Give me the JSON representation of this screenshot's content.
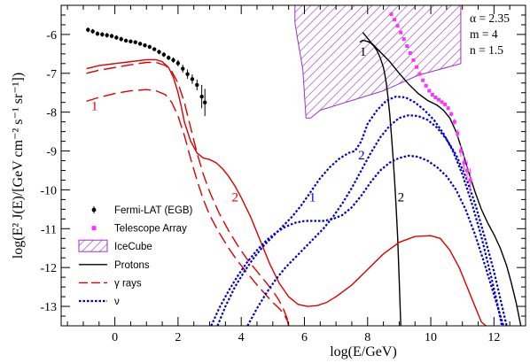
{
  "chart_data": {
    "type": "line",
    "xlabel": "log(E/GeV)",
    "ylabel": "log(E² J(E)/[GeV cm⁻² s⁻¹ sr⁻¹])",
    "xlim": [
      -1.7,
      13.0
    ],
    "ylim": [
      -13.5,
      -5.25
    ],
    "x_ticks": [
      0,
      2,
      4,
      6,
      8,
      10,
      12
    ],
    "y_ticks": [
      -13,
      -12,
      -11,
      -10,
      -9,
      -8,
      -7,
      -6
    ],
    "parameters": [
      "α = 2.35",
      "m = 4",
      "n = 1.5"
    ],
    "legend": {
      "position": "bottom-left",
      "entries": [
        {
          "label": "Fermi-LAT (EGB)",
          "symbol": "dot",
          "color": "#000000"
        },
        {
          "label": "Telescope Array",
          "symbol": "square",
          "color": "#ff33ff"
        },
        {
          "label": "IceCube",
          "symbol": "hatch",
          "color": "#9933cc"
        },
        {
          "label": "Protons",
          "symbol": "solid",
          "color": "#000000"
        },
        {
          "label": "γ rays",
          "symbol": "dashed",
          "color": "#dd0000"
        },
        {
          "label": "ν",
          "symbol": "dotted",
          "color": "#0000cc"
        }
      ]
    },
    "curve_labels": [
      {
        "text": "1",
        "x": -0.75,
        "y": -7.95,
        "color": "#dd0000"
      },
      {
        "text": "2",
        "x": 3.7,
        "y": -10.3,
        "color": "#dd0000"
      },
      {
        "text": "1",
        "x": 6.15,
        "y": -10.3,
        "color": "#0000cc"
      },
      {
        "text": "2",
        "x": 7.7,
        "y": -9.22,
        "color": "#0000cc"
      },
      {
        "text": "1",
        "x": 7.75,
        "y": -6.55,
        "color": "#000000"
      },
      {
        "text": "2",
        "x": 8.95,
        "y": -10.3,
        "color": "#000000"
      }
    ],
    "fermi_lat": {
      "name": "Fermi-LAT (EGB)",
      "x": [
        -0.85,
        -0.7,
        -0.55,
        -0.4,
        -0.25,
        -0.1,
        0.05,
        0.2,
        0.35,
        0.5,
        0.65,
        0.8,
        0.95,
        1.1,
        1.25,
        1.4,
        1.55,
        1.7,
        1.85,
        2.0,
        2.15,
        2.3,
        2.45,
        2.6,
        2.75,
        2.85
      ],
      "y": [
        -5.88,
        -5.92,
        -5.98,
        -6.0,
        -6.02,
        -6.04,
        -6.08,
        -6.12,
        -6.16,
        -6.18,
        -6.2,
        -6.24,
        -6.28,
        -6.32,
        -6.38,
        -6.45,
        -6.52,
        -6.6,
        -6.66,
        -6.74,
        -6.88,
        -7.02,
        -7.15,
        -7.3,
        -7.6,
        -7.75
      ],
      "err": [
        0.06,
        0.06,
        0.06,
        0.06,
        0.06,
        0.06,
        0.06,
        0.06,
        0.05,
        0.05,
        0.05,
        0.05,
        0.05,
        0.05,
        0.05,
        0.06,
        0.06,
        0.06,
        0.07,
        0.08,
        0.1,
        0.12,
        0.12,
        0.14,
        0.3,
        0.35
      ]
    },
    "telescope_array": {
      "name": "Telescope Array",
      "x": [
        8.75,
        8.85,
        8.95,
        9.05,
        9.15,
        9.25,
        9.35,
        9.45,
        9.55,
        9.65,
        9.75,
        9.85,
        9.95,
        10.05,
        10.15,
        10.25,
        10.35,
        10.45,
        10.55,
        10.65,
        10.75,
        10.85,
        10.95,
        11.05,
        11.15,
        11.25
      ],
      "y": [
        -5.48,
        -5.62,
        -5.78,
        -5.95,
        -6.12,
        -6.3,
        -6.48,
        -6.66,
        -6.84,
        -7.02,
        -7.18,
        -7.32,
        -7.45,
        -7.55,
        -7.62,
        -7.68,
        -7.74,
        -7.8,
        -7.9,
        -8.05,
        -8.25,
        -8.55,
        -9.0,
        -9.3,
        -9.5,
        -9.75
      ],
      "err": [
        0.02,
        0.02,
        0.02,
        0.02,
        0.02,
        0.02,
        0.02,
        0.02,
        0.02,
        0.02,
        0.02,
        0.03,
        0.03,
        0.03,
        0.03,
        0.04,
        0.04,
        0.05,
        0.05,
        0.06,
        0.08,
        0.1,
        0.15,
        0.2,
        0.25,
        0.3
      ]
    },
    "icecube": {
      "name": "IceCube",
      "polygon": [
        [
          5.7,
          -5.25
        ],
        [
          10.95,
          -5.25
        ],
        [
          10.95,
          -6.75
        ],
        [
          9.6,
          -7.05
        ],
        [
          8.5,
          -7.45
        ],
        [
          7.5,
          -7.7
        ],
        [
          6.5,
          -7.95
        ],
        [
          6.2,
          -8.15
        ],
        [
          6.05,
          -8.15
        ],
        [
          5.95,
          -6.9
        ],
        [
          5.78,
          -6.1
        ],
        [
          5.7,
          -5.7
        ]
      ]
    },
    "series": [
      {
        "name": "Protons",
        "label": "1",
        "style": "solid",
        "color": "#000000",
        "x": [
          7.75,
          7.85,
          8.0,
          8.1,
          8.2,
          8.3,
          8.4,
          8.5,
          8.55,
          8.6,
          8.65,
          8.7,
          8.75,
          8.8,
          8.85,
          8.9,
          8.95,
          9.0,
          9.05
        ],
        "y": [
          -6.2,
          -6.15,
          -6.18,
          -6.22,
          -6.3,
          -6.42,
          -6.6,
          -6.85,
          -7.05,
          -7.3,
          -7.65,
          -8.05,
          -8.55,
          -9.1,
          -9.7,
          -10.4,
          -11.2,
          -12.3,
          -13.5
        ]
      },
      {
        "name": "Protons",
        "label": "2",
        "style": "solid",
        "color": "#000000",
        "x": [
          7.85,
          8.1,
          8.4,
          8.7,
          9.0,
          9.3,
          9.6,
          9.9,
          10.2,
          10.4,
          10.6,
          10.8,
          11.0,
          11.2,
          11.4,
          11.6,
          11.8,
          12.0,
          12.2,
          12.4,
          12.55,
          12.7,
          12.85
        ],
        "y": [
          -5.95,
          -6.2,
          -6.45,
          -6.7,
          -7.0,
          -7.28,
          -7.52,
          -7.7,
          -7.82,
          -7.95,
          -8.15,
          -8.5,
          -9.0,
          -9.55,
          -10.05,
          -10.5,
          -10.85,
          -11.15,
          -11.5,
          -11.95,
          -12.4,
          -12.9,
          -13.5
        ]
      },
      {
        "name": "γ rays",
        "label": "1",
        "style": "dashed",
        "color": "#dd0000",
        "x": [
          -0.9,
          -0.5,
          0.0,
          0.5,
          1.0,
          1.3,
          1.6,
          1.8,
          2.0,
          2.2,
          2.4,
          2.6,
          2.8,
          3.0,
          3.3,
          3.6,
          3.9,
          4.2,
          4.5,
          4.8,
          5.0,
          5.2,
          5.35,
          5.45,
          5.5
        ],
        "y": [
          -7.72,
          -7.62,
          -7.52,
          -7.45,
          -7.42,
          -7.45,
          -7.55,
          -7.75,
          -8.1,
          -8.6,
          -9.2,
          -9.75,
          -10.25,
          -10.65,
          -11.1,
          -11.5,
          -11.85,
          -12.15,
          -12.45,
          -12.72,
          -12.9,
          -13.05,
          -13.2,
          -13.35,
          -13.5
        ]
      },
      {
        "name": "γ rays",
        "label": "2",
        "style": "dashed",
        "color": "#dd0000",
        "x": [
          -0.9,
          -0.5,
          0.0,
          0.5,
          1.0,
          1.3,
          1.6,
          1.8,
          2.0,
          2.2,
          2.4,
          2.6,
          2.8,
          3.0,
          3.3,
          3.6,
          3.9,
          4.2,
          4.5,
          4.8,
          5.0,
          5.2,
          5.35,
          5.45,
          5.5
        ],
        "y": [
          -7.0,
          -6.92,
          -6.85,
          -6.78,
          -6.72,
          -6.72,
          -6.8,
          -6.95,
          -7.25,
          -7.75,
          -8.4,
          -9.05,
          -9.6,
          -10.05,
          -10.6,
          -11.05,
          -11.45,
          -11.8,
          -12.1,
          -12.4,
          -12.6,
          -12.85,
          -13.1,
          -13.3,
          -13.5
        ]
      },
      {
        "name": "γ rays",
        "label": "",
        "style": "solid",
        "color": "#dd0000",
        "x": [
          -0.9,
          -0.5,
          0.0,
          0.5,
          1.0,
          1.3,
          1.5,
          1.7,
          1.85,
          2.0,
          2.1,
          2.2,
          2.4,
          2.6,
          2.8,
          3.0,
          3.2,
          3.4,
          3.6,
          3.8,
          4.0,
          4.3,
          4.6,
          4.9,
          5.2,
          5.5,
          5.8,
          6.1,
          6.4,
          6.7,
          7.0,
          7.5,
          8.0,
          8.5,
          9.0,
          9.5,
          10.0,
          10.3,
          10.6,
          10.9,
          11.2,
          11.4,
          11.6,
          11.75
        ],
        "y": [
          -6.88,
          -6.8,
          -6.75,
          -6.7,
          -6.65,
          -6.65,
          -6.7,
          -6.85,
          -7.1,
          -7.5,
          -7.85,
          -8.25,
          -8.75,
          -9.05,
          -9.18,
          -9.22,
          -9.3,
          -9.45,
          -9.65,
          -9.9,
          -10.2,
          -10.7,
          -11.3,
          -11.9,
          -12.4,
          -12.75,
          -12.95,
          -13.0,
          -12.98,
          -12.9,
          -12.75,
          -12.45,
          -12.05,
          -11.65,
          -11.35,
          -11.2,
          -11.18,
          -11.25,
          -11.55,
          -12.0,
          -12.6,
          -13.0,
          -13.4,
          -13.5
        ]
      },
      {
        "name": "ν",
        "label": "1",
        "style": "dotted",
        "color": "#0000cc",
        "x": [
          3.05,
          3.3,
          3.6,
          3.9,
          4.2,
          4.5,
          4.8,
          5.1,
          5.4,
          5.7,
          6.0,
          6.3,
          6.6,
          6.9,
          7.2,
          7.5,
          7.8,
          8.1,
          8.4,
          8.7,
          9.0,
          9.3,
          9.6,
          9.9,
          10.2,
          10.5,
          10.8,
          11.1,
          11.4,
          11.7,
          12.0,
          12.15,
          12.3
        ],
        "y": [
          -13.5,
          -13.05,
          -12.6,
          -12.2,
          -11.85,
          -11.55,
          -11.3,
          -11.1,
          -10.95,
          -10.85,
          -10.8,
          -10.8,
          -10.8,
          -10.75,
          -10.65,
          -10.45,
          -10.15,
          -9.8,
          -9.5,
          -9.3,
          -9.18,
          -9.12,
          -9.15,
          -9.25,
          -9.42,
          -9.65,
          -10.0,
          -10.5,
          -11.15,
          -11.9,
          -12.7,
          -13.1,
          -13.5
        ]
      },
      {
        "name": "ν",
        "label": "2",
        "style": "dotted",
        "color": "#0000cc",
        "x": [
          3.25,
          3.5,
          3.8,
          4.1,
          4.4,
          4.7,
          5.0,
          5.3,
          5.6,
          5.9,
          6.2,
          6.5,
          6.8,
          7.1,
          7.4,
          7.6,
          7.8,
          8.0,
          8.3,
          8.6,
          8.9,
          9.2,
          9.5,
          9.8,
          10.1,
          10.4,
          10.7,
          11.0,
          11.3,
          11.6,
          11.9,
          12.1,
          12.25
        ],
        "y": [
          -13.5,
          -13.0,
          -12.5,
          -12.1,
          -11.75,
          -11.45,
          -11.2,
          -10.95,
          -10.7,
          -10.4,
          -10.05,
          -9.7,
          -9.42,
          -9.2,
          -9.05,
          -9.0,
          -8.75,
          -8.3,
          -7.95,
          -7.7,
          -7.6,
          -7.62,
          -7.75,
          -7.95,
          -8.2,
          -8.55,
          -9.0,
          -9.6,
          -10.35,
          -11.2,
          -12.2,
          -12.9,
          -13.5
        ]
      },
      {
        "name": "ν",
        "label": "",
        "style": "dotted",
        "color": "#0000cc",
        "x": [
          4.2,
          4.5,
          4.8,
          5.1,
          5.4,
          5.7,
          6.0,
          6.3,
          6.6,
          6.9,
          7.2,
          7.5,
          7.8,
          8.1,
          8.4,
          8.7,
          9.0,
          9.3,
          9.6,
          9.9,
          10.2,
          10.5,
          10.8,
          11.1,
          11.4,
          11.7,
          12.0,
          12.2,
          12.4
        ],
        "y": [
          -13.5,
          -13.05,
          -12.65,
          -12.3,
          -12.0,
          -11.75,
          -11.5,
          -11.25,
          -11.0,
          -10.7,
          -10.35,
          -9.95,
          -9.5,
          -9.05,
          -8.65,
          -8.35,
          -8.15,
          -8.08,
          -8.1,
          -8.2,
          -8.4,
          -8.7,
          -9.1,
          -9.65,
          -10.35,
          -11.2,
          -12.1,
          -12.8,
          -13.5
        ]
      }
    ]
  }
}
